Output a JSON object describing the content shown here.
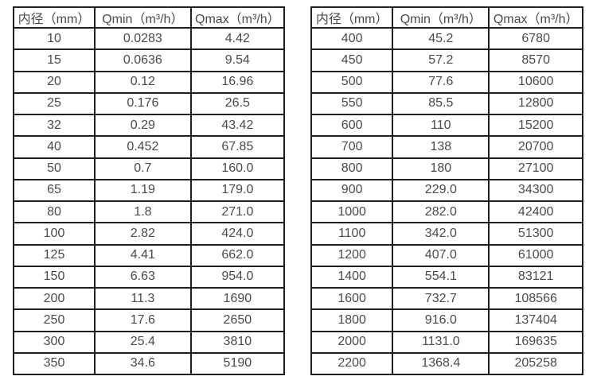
{
  "colors": {
    "background": "#ffffff",
    "border": "#1f1f1f",
    "text": "#4a4a4a"
  },
  "tables": [
    {
      "name": "flow-table-small-diameters",
      "headers": [
        "内径（mm）",
        "Qmin（m³/h）",
        "Qmax（m³/h）"
      ],
      "rows": [
        [
          "10",
          "0.0283",
          "4.42"
        ],
        [
          "15",
          "0.0636",
          "9.54"
        ],
        [
          "20",
          "0.12",
          "16.96"
        ],
        [
          "25",
          "0.176",
          "26.5"
        ],
        [
          "32",
          "0.29",
          "43.42"
        ],
        [
          "40",
          "0.452",
          "67.85"
        ],
        [
          "50",
          "0.7",
          "160.0"
        ],
        [
          "65",
          "1.19",
          "179.0"
        ],
        [
          "80",
          "1.8",
          "271.0"
        ],
        [
          "100",
          "2.82",
          "424.0"
        ],
        [
          "125",
          "4.41",
          "662.0"
        ],
        [
          "150",
          "6.63",
          "954.0"
        ],
        [
          "200",
          "11.3",
          "1690"
        ],
        [
          "250",
          "17.6",
          "2650"
        ],
        [
          "300",
          "25.4",
          "3810"
        ],
        [
          "350",
          "34.6",
          "5190"
        ]
      ]
    },
    {
      "name": "flow-table-large-diameters",
      "headers": [
        "内径（mm）",
        "Qmin（m³/h）",
        "Qmax（m³/h）"
      ],
      "rows": [
        [
          "400",
          "45.2",
          "6780"
        ],
        [
          "450",
          "57.2",
          "8570"
        ],
        [
          "500",
          "77.6",
          "10600"
        ],
        [
          "550",
          "85.5",
          "12800"
        ],
        [
          "600",
          "110",
          "15200"
        ],
        [
          "700",
          "138",
          "20700"
        ],
        [
          "800",
          "180",
          "27100"
        ],
        [
          "900",
          "229.0",
          "34300"
        ],
        [
          "1000",
          "282.0",
          "42400"
        ],
        [
          "1100",
          "342.0",
          "51300"
        ],
        [
          "1200",
          "407.0",
          "61000"
        ],
        [
          "1400",
          "554.1",
          "83121"
        ],
        [
          "1600",
          "732.7",
          "108566"
        ],
        [
          "1800",
          "916.0",
          "137404"
        ],
        [
          "2000",
          "1131.0",
          "169635"
        ],
        [
          "2200",
          "1368.4",
          "205258"
        ]
      ]
    }
  ]
}
